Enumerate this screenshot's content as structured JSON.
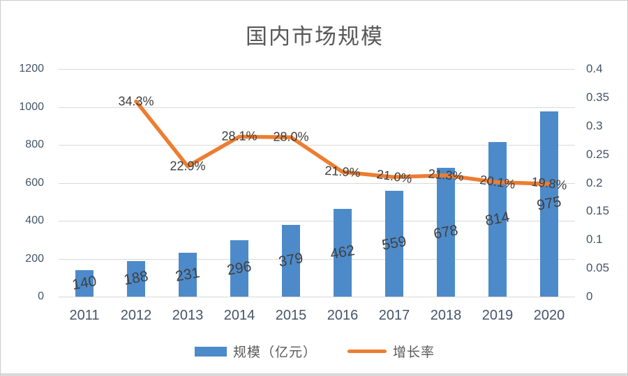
{
  "frame": {
    "bg": "#ffffff",
    "border": "#cbcbcb"
  },
  "chart_data": {
    "type": "bar+line",
    "title": "国内市场规模",
    "categories": [
      "2011",
      "2012",
      "2013",
      "2014",
      "2015",
      "2016",
      "2017",
      "2018",
      "2019",
      "2020"
    ],
    "series": [
      {
        "name": "规模（亿元）",
        "type": "bar",
        "axis": "left",
        "color": "#4d8ac9",
        "values": [
          140,
          188,
          231,
          296,
          379,
          462,
          559,
          678,
          814,
          975
        ],
        "labels": [
          "140",
          "188",
          "231",
          "296",
          "379",
          "462",
          "559",
          "678",
          "814",
          "975"
        ]
      },
      {
        "name": "增长率",
        "type": "line",
        "axis": "right",
        "color": "#ed7d31",
        "values": [
          null,
          0.343,
          0.229,
          0.281,
          0.28,
          0.219,
          0.21,
          0.213,
          0.201,
          0.198
        ],
        "labels": [
          null,
          "34.3%",
          "22.9%",
          "28.1%",
          "28.0%",
          "21.9%",
          "21.0%",
          "21.3%",
          "20.1%",
          "19.8%"
        ]
      }
    ],
    "left_axis": {
      "min": 0,
      "max": 1200,
      "ticks": [
        "1200",
        "1000",
        "800",
        "600",
        "400",
        "200",
        "0"
      ]
    },
    "right_axis": {
      "min": 0,
      "max": 0.4,
      "ticks": [
        "0.4",
        "0.35",
        "0.3",
        "0.25",
        "0.2",
        "0.15",
        "0.1",
        "0.05",
        "0"
      ]
    },
    "legend": [
      {
        "label": "规模（亿元）",
        "swatch": "rect",
        "color": "#4d8ac9"
      },
      {
        "label": "增长率",
        "swatch": "line",
        "color": "#ed7d31"
      }
    ],
    "grid": true,
    "legend_position": "bottom",
    "colors": {
      "gridline": "#d9d9d9",
      "axis_text": "#44546a",
      "data_label": "#404040",
      "title_text": "#595959"
    }
  }
}
